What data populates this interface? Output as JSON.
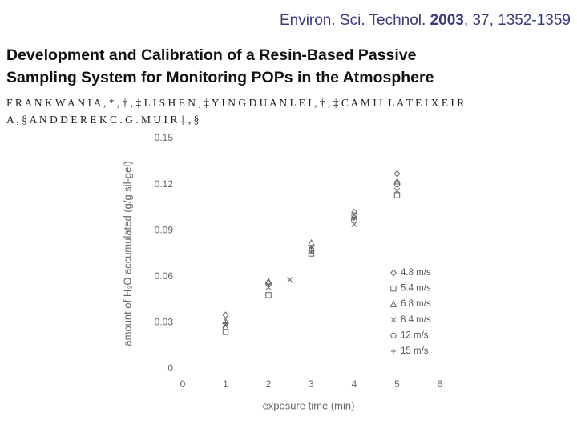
{
  "header": {
    "citation": {
      "journal": "Environ. Sci. Technol.",
      "year": "2003",
      "rest": ", 37, 1352-1359"
    },
    "title_lines": [
      "Development and Calibration of a Resin-Based Passive",
      "Sampling System for Monitoring POPs in the Atmosphere"
    ],
    "author_lines": [
      "F R A N K W A N I A , * , † , ‡ L I S H E N , ‡ Y I N G D U A N L E I , † , ‡ C A M I L L A T E I X E I R",
      "A , § A N D D E R E K C . G . M U I R ‡ , §"
    ]
  },
  "chart_data": {
    "type": "scatter",
    "x_label": "exposure time (min)",
    "y_label": "amount of H₂O accumulated (g/g sil-gel)",
    "xlim": [
      0,
      6
    ],
    "xticks": [
      0,
      1,
      2,
      3,
      4,
      5,
      6
    ],
    "ylim": [
      0,
      0.15
    ],
    "yticks": [
      0,
      0.03,
      0.06,
      0.09,
      0.12,
      0.15
    ],
    "grid": false,
    "legend": "right",
    "series": [
      {
        "name": "4.8 m/s",
        "color": "#666666",
        "marker": "diamond",
        "x": [
          1,
          2,
          3,
          4,
          5
        ],
        "values": [
          0.035,
          0.056,
          0.078,
          0.102,
          0.127
        ]
      },
      {
        "name": "5.4 m/s",
        "color": "#666666",
        "marker": "square",
        "x": [
          1,
          2,
          3,
          4,
          5
        ],
        "values": [
          0.024,
          0.048,
          0.075,
          0.097,
          0.113
        ]
      },
      {
        "name": "6.8 m/s",
        "color": "#666666",
        "marker": "triangle",
        "x": [
          1,
          2,
          3,
          4,
          5
        ],
        "values": [
          0.031,
          0.057,
          0.082,
          0.099,
          0.122
        ]
      },
      {
        "name": "8.4 m/s",
        "color": "#666666",
        "marker": "x",
        "x": [
          1,
          2,
          2.5,
          3,
          4,
          5
        ],
        "values": [
          0.028,
          0.053,
          0.058,
          0.076,
          0.094,
          0.116
        ]
      },
      {
        "name": "12 m/s",
        "color": "#666666",
        "marker": "circle",
        "x": [
          1,
          2,
          3,
          4,
          5
        ],
        "values": [
          0.027,
          0.055,
          0.077,
          0.1,
          0.12
        ]
      },
      {
        "name": "15 m/s",
        "color": "#666666",
        "marker": "plus",
        "x": [
          1,
          2,
          3,
          4,
          5
        ],
        "values": [
          0.03,
          0.054,
          0.079,
          0.098,
          0.122
        ]
      }
    ]
  }
}
